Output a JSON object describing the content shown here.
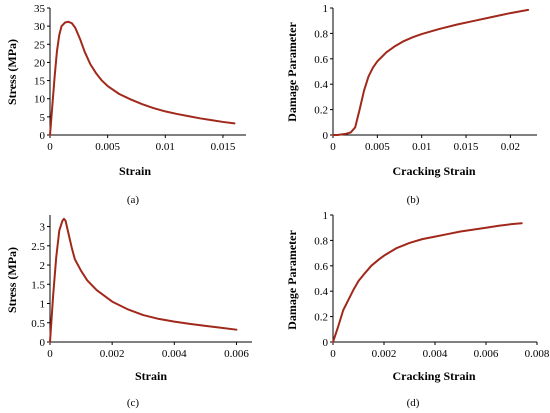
{
  "chart_data": [
    {
      "type": "line",
      "panel_label": "(a)",
      "xlabel": "Strain",
      "ylabel": "Stress (MPa)",
      "xlim": [
        0,
        0.017
      ],
      "ylim": [
        0,
        35
      ],
      "xticks": [
        0,
        0.005,
        0.01,
        0.015
      ],
      "yticks": [
        0,
        5,
        10,
        15,
        20,
        25,
        30,
        35
      ],
      "xtick_labels": [
        "0",
        "0.005",
        "0.01",
        "0.015"
      ],
      "ytick_labels": [
        "0",
        "5",
        "10",
        "15",
        "20",
        "25",
        "30",
        "35"
      ],
      "line_color": "#a0291b",
      "x": [
        0,
        0.0002,
        0.0004,
        0.0006,
        0.0008,
        0.001,
        0.0013,
        0.0016,
        0.0019,
        0.0022,
        0.0026,
        0.003,
        0.0035,
        0.004,
        0.0045,
        0.005,
        0.006,
        0.007,
        0.008,
        0.009,
        0.01,
        0.011,
        0.012,
        0.013,
        0.014,
        0.015,
        0.016
      ],
      "y": [
        0,
        8,
        16,
        23,
        27.5,
        30,
        31,
        31.2,
        30.8,
        29.5,
        26.5,
        23,
        19.5,
        17,
        15,
        13.5,
        11.3,
        9.8,
        8.5,
        7.4,
        6.5,
        5.8,
        5.2,
        4.6,
        4.1,
        3.6,
        3.2
      ]
    },
    {
      "type": "line",
      "panel_label": "(b)",
      "xlabel": "Cracking Strain",
      "ylabel": "Damage Parameter",
      "xlim": [
        0,
        0.023
      ],
      "ylim": [
        0,
        1
      ],
      "xticks": [
        0,
        0.005,
        0.01,
        0.015,
        0.02
      ],
      "yticks": [
        0,
        0.2,
        0.4,
        0.6,
        0.8,
        1
      ],
      "xtick_labels": [
        "0",
        "0.005",
        "0.01",
        "0.015",
        "0.02"
      ],
      "ytick_labels": [
        "0",
        "0.2",
        "0.4",
        "0.6",
        "0.8",
        "1"
      ],
      "line_color": "#a0291b",
      "x": [
        0,
        0.0005,
        0.001,
        0.0015,
        0.002,
        0.0025,
        0.003,
        0.0035,
        0.004,
        0.0045,
        0.005,
        0.006,
        0.007,
        0.008,
        0.009,
        0.01,
        0.012,
        0.014,
        0.016,
        0.018,
        0.02,
        0.022
      ],
      "y": [
        0,
        0,
        0.005,
        0.01,
        0.02,
        0.06,
        0.2,
        0.35,
        0.46,
        0.53,
        0.58,
        0.65,
        0.7,
        0.74,
        0.77,
        0.795,
        0.835,
        0.87,
        0.9,
        0.93,
        0.96,
        0.985
      ]
    },
    {
      "type": "line",
      "panel_label": "(c)",
      "xlabel": "Strain",
      "ylabel": "Stress (MPa)",
      "xlim": [
        0,
        0.0065
      ],
      "ylim": [
        0,
        3.3
      ],
      "xticks": [
        0,
        0.002,
        0.004,
        0.006
      ],
      "yticks": [
        0,
        0.5,
        1,
        1.5,
        2,
        2.5,
        3
      ],
      "xtick_labels": [
        "0",
        "0.002",
        "0.004",
        "0.006"
      ],
      "ytick_labels": [
        "0",
        "0.5",
        "1",
        "1.5",
        "2",
        "2.5",
        "3"
      ],
      "line_color": "#a0291b",
      "x": [
        0,
        0.0001,
        0.0002,
        0.0003,
        0.0004,
        0.00045,
        0.0005,
        0.0006,
        0.0007,
        0.0008,
        0.001,
        0.0012,
        0.0015,
        0.002,
        0.0025,
        0.003,
        0.0035,
        0.004,
        0.0045,
        0.005,
        0.0055,
        0.006
      ],
      "y": [
        0,
        1.2,
        2.2,
        2.9,
        3.15,
        3.2,
        3.15,
        2.8,
        2.45,
        2.15,
        1.85,
        1.6,
        1.35,
        1.05,
        0.85,
        0.7,
        0.6,
        0.53,
        0.47,
        0.42,
        0.37,
        0.32
      ]
    },
    {
      "type": "line",
      "panel_label": "(d)",
      "xlabel": "Cracking Strain",
      "ylabel": "Damage Parameter",
      "xlim": [
        0,
        0.008
      ],
      "ylim": [
        0,
        1
      ],
      "xticks": [
        0,
        0.002,
        0.004,
        0.006,
        0.008
      ],
      "yticks": [
        0,
        0.2,
        0.4,
        0.6,
        0.8,
        1
      ],
      "xtick_labels": [
        "0",
        "0.002",
        "0.004",
        "0.006",
        "0.008"
      ],
      "ytick_labels": [
        "0",
        "0.2",
        "0.4",
        "0.6",
        "0.8",
        "1"
      ],
      "line_color": "#a0291b",
      "x": [
        0,
        0.0002,
        0.0004,
        0.0006,
        0.0008,
        0.001,
        0.0012,
        0.0015,
        0.0018,
        0.002,
        0.0025,
        0.003,
        0.0035,
        0.004,
        0.0045,
        0.005,
        0.0055,
        0.006,
        0.0065,
        0.007,
        0.0074
      ],
      "y": [
        0,
        0.12,
        0.25,
        0.33,
        0.41,
        0.48,
        0.53,
        0.6,
        0.65,
        0.68,
        0.74,
        0.78,
        0.81,
        0.83,
        0.85,
        0.87,
        0.885,
        0.9,
        0.915,
        0.928,
        0.935
      ]
    }
  ]
}
